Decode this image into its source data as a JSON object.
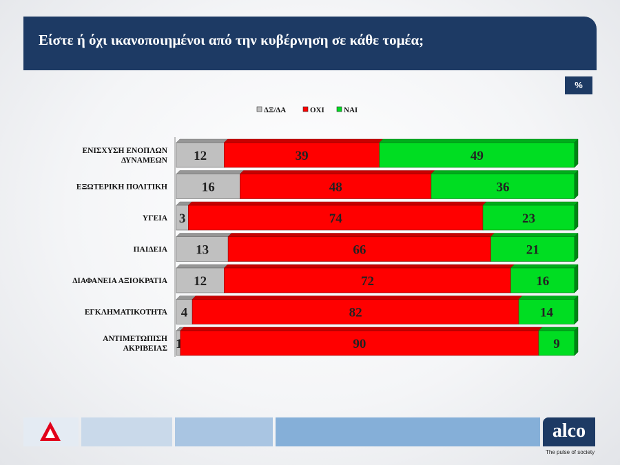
{
  "header": {
    "title": "Είστε ή όχι ικανοποιημένοι από την κυβέρνηση σε κάθε τομέα;"
  },
  "unit": "%",
  "colors": {
    "header_bg": "#1d3a64",
    "dxda": "#c0c0c0",
    "oxi": "#ff0000",
    "nai": "#00dd22"
  },
  "chart_data": {
    "type": "bar",
    "stacked": true,
    "orientation": "horizontal",
    "title": "Είστε ή όχι ικανοποιημένοι από την κυβέρνηση σε κάθε τομέα;",
    "unit": "%",
    "legend_position": "top",
    "categories": [
      "ΕΝΙΣΧΥΣΗ ΕΝΟΠΛΩΝ ΔΥΝΑΜΕΩΝ",
      "ΕΞΩΤΕΡΙΚΗ ΠΟΛΙΤΙΚΗ",
      "ΥΓΕΙΑ",
      "ΠΑΙΔΕΙΑ",
      "ΔΙΑΦΑΝΕΙΑ ΑΞΙΟΚΡΑΤΙΑ",
      "ΕΓΚΛΗΜΑΤΙΚΟΤΗΤΑ",
      "ΑΝΤΙΜΕΤΩΠΙΣΗ ΑΚΡΙΒΕΙΑΣ"
    ],
    "category_lines": [
      [
        "ΕΝΙΣΧΥΣΗ ΕΝΟΠΛΩΝ",
        "ΔΥΝΑΜΕΩΝ"
      ],
      [
        "ΕΞΩΤΕΡΙΚΗ ΠΟΛΙΤΙΚΗ"
      ],
      [
        "ΥΓΕΙΑ"
      ],
      [
        "ΠΑΙΔΕΙΑ"
      ],
      [
        "ΔΙΑΦΑΝΕΙΑ ΑΞΙΟΚΡΑΤΙΑ"
      ],
      [
        "ΕΓΚΛΗΜΑΤΙΚΟΤΗΤΑ"
      ],
      [
        "ΑΝΤΙΜΕΤΩΠΙΣΗ",
        "ΑΚΡΙΒΕΙΑΣ"
      ]
    ],
    "series": [
      {
        "name": "ΔΞ/ΔΑ",
        "color": "#c0c0c0",
        "values": [
          12,
          16,
          3,
          13,
          12,
          4,
          1
        ]
      },
      {
        "name": "ΟΧΙ",
        "color": "#ff0000",
        "values": [
          39,
          48,
          74,
          66,
          72,
          82,
          90
        ]
      },
      {
        "name": "ΝΑΙ",
        "color": "#00dd22",
        "values": [
          49,
          36,
          23,
          21,
          16,
          14,
          9
        ]
      }
    ],
    "xlim": [
      0,
      100
    ],
    "grid": false
  },
  "footer": {
    "brand": "alco",
    "tagline": "The pulse of society"
  }
}
